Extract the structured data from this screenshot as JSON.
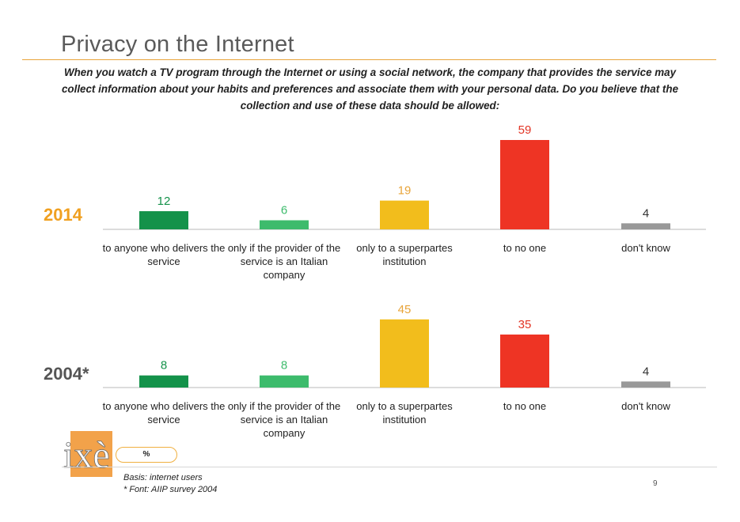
{
  "page": {
    "title": "Privacy on the Internet",
    "question": "When you watch a TV program through the Internet or using a social network, the company that provides the service may collect information about your habits and preferences and associate them with your personal data. Do you believe that the collection and use of these data should be allowed:",
    "unit_badge": "%",
    "basis_note": "Basis: internet users",
    "font_note": "* Font: AIIP survey 2004",
    "page_number": "9",
    "logo_text": "ixè"
  },
  "chart_data": [
    {
      "type": "bar",
      "year_label": "2014",
      "categories": [
        "to anyone who delivers the service",
        "only if the provider of the service is an Italian company",
        "only to a superpartes institution",
        "to no one",
        "don't know"
      ],
      "values": [
        12,
        6,
        19,
        59,
        4
      ],
      "colors": [
        "#14924a",
        "#3dbb6c",
        "#f2bd1c",
        "#ee3424",
        "#999999"
      ],
      "ylim": [
        0,
        60
      ]
    },
    {
      "type": "bar",
      "year_label": "2004*",
      "categories": [
        "to anyone who delivers the service",
        "only if the provider of the service is an Italian company",
        "only to a superpartes institution",
        "to no one",
        "don't know"
      ],
      "values": [
        8,
        8,
        45,
        35,
        4
      ],
      "colors": [
        "#14924a",
        "#3dbb6c",
        "#f2bd1c",
        "#ee3424",
        "#999999"
      ],
      "ylim": [
        0,
        60
      ]
    }
  ],
  "colors": {
    "accent_orange": "#e8a43a",
    "label_value_colors": [
      "#14924a",
      "#3dbb6c",
      "#e8a43a",
      "#e23424",
      "#333333"
    ]
  }
}
